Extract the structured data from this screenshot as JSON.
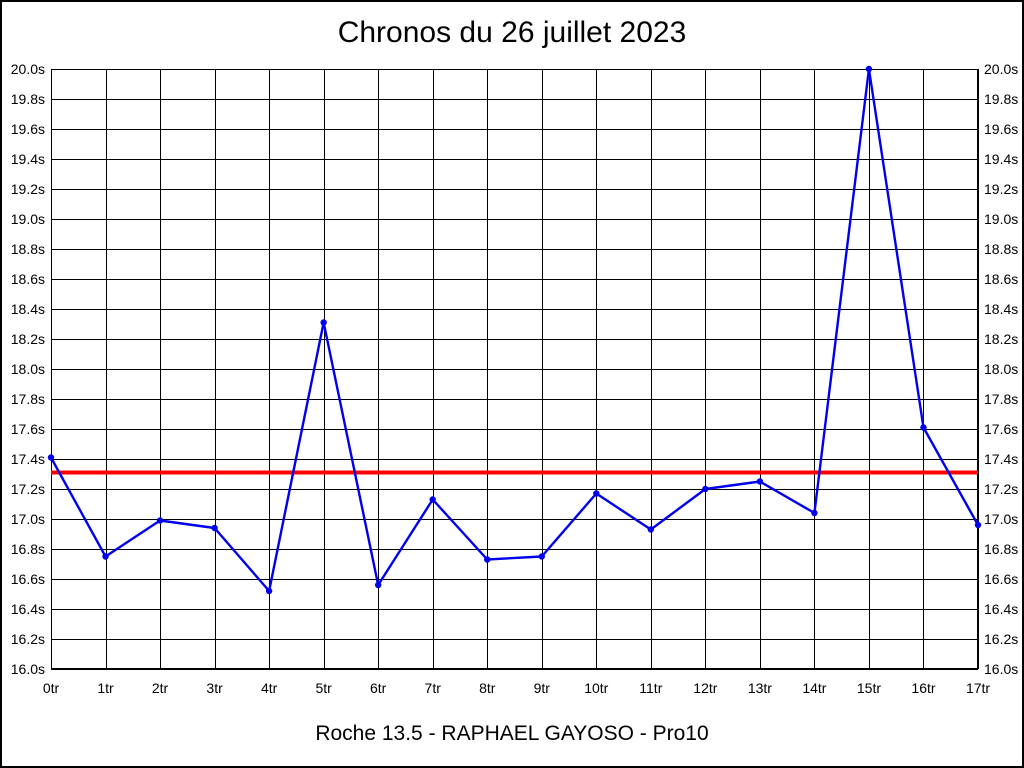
{
  "page": {
    "title": "Chronos du 26 juillet 2023",
    "caption": "Roche 13.5 - RAPHAEL GAYOSO - Pro10"
  },
  "chart_data": {
    "type": "line",
    "title": "Chronos du 26 juillet 2023",
    "caption": "Roche 13.5 - RAPHAEL GAYOSO - Pro10",
    "xlabel": "",
    "ylabel": "",
    "unit": "s",
    "grid": "on",
    "legend": "none",
    "ylim": [
      16.0,
      20.0
    ],
    "ytick_step": 0.2,
    "y_tick_labels": [
      "20.0s",
      "19.8s",
      "19.6s",
      "19.4s",
      "19.2s",
      "19.0s",
      "18.8s",
      "18.6s",
      "18.4s",
      "18.2s",
      "18.0s",
      "17.8s",
      "17.6s",
      "17.4s",
      "17.2s",
      "17.0s",
      "16.8s",
      "16.6s",
      "16.4s",
      "16.2s",
      "16.0s"
    ],
    "x_categories": [
      "0tr",
      "1tr",
      "2tr",
      "3tr",
      "4tr",
      "5tr",
      "6tr",
      "7tr",
      "8tr",
      "9tr",
      "10tr",
      "11tr",
      "12tr",
      "13tr",
      "14tr",
      "15tr",
      "16tr",
      "17tr"
    ],
    "series": [
      {
        "name": "lap_times",
        "color": "#0000ee",
        "values": [
          17.41,
          16.75,
          16.99,
          16.94,
          16.52,
          18.31,
          16.56,
          17.13,
          16.73,
          16.75,
          17.17,
          16.93,
          17.2,
          17.25,
          17.04,
          20.0,
          17.61,
          16.96
        ]
      }
    ],
    "reference_line": {
      "value": 17.31,
      "color": "#ff0000"
    },
    "grid_color": "#000000",
    "axis_label_color": "#000000"
  }
}
